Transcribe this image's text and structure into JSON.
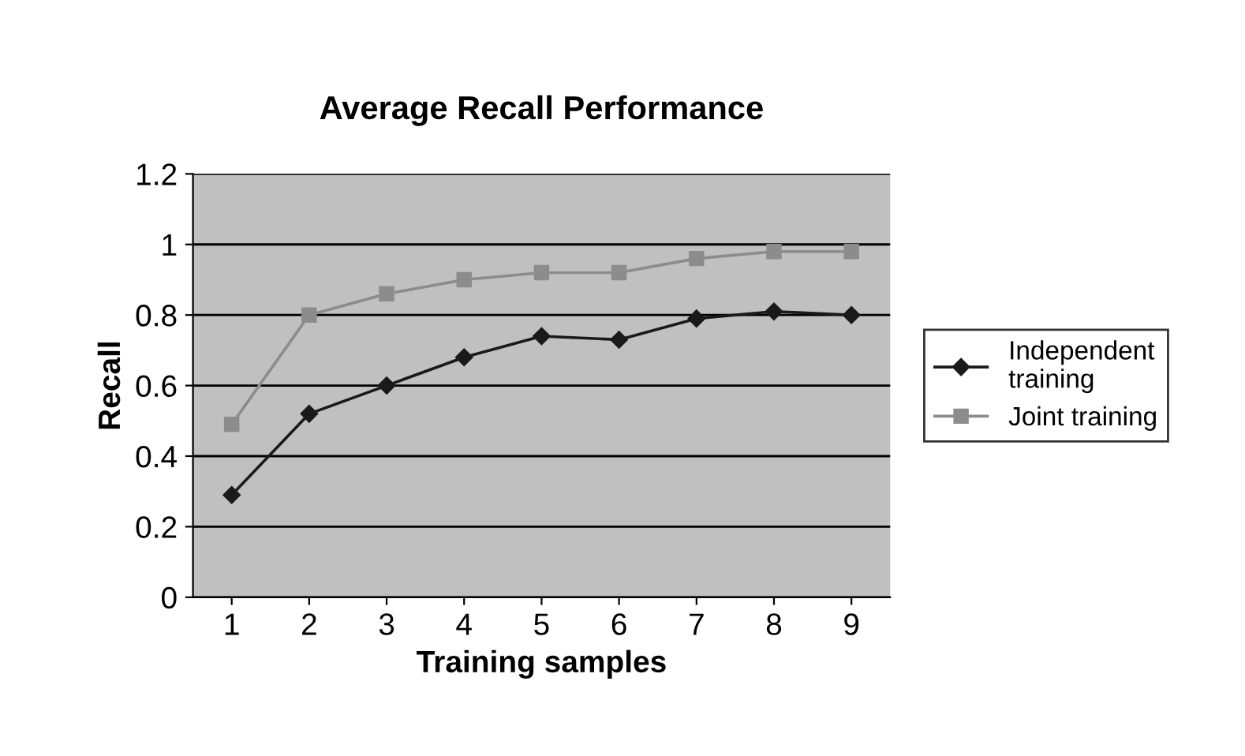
{
  "chart_data": {
    "type": "line",
    "title": "Average Recall Performance",
    "xlabel": "Training samples",
    "ylabel": "Recall",
    "categories": [
      "1",
      "2",
      "3",
      "4",
      "5",
      "6",
      "7",
      "8",
      "9"
    ],
    "series": [
      {
        "name": "Independent training",
        "color": "#1a1a1a",
        "marker": "diamond",
        "values": [
          0.29,
          0.52,
          0.6,
          0.68,
          0.74,
          0.73,
          0.79,
          0.81,
          0.8
        ]
      },
      {
        "name": "Joint training",
        "color": "#8c8c8c",
        "marker": "square",
        "values": [
          0.49,
          0.8,
          0.86,
          0.9,
          0.92,
          0.92,
          0.96,
          0.98,
          0.98
        ]
      }
    ],
    "ylim": [
      0,
      1.2
    ],
    "yticks": [
      0,
      0.2,
      0.4,
      0.6,
      0.8,
      1,
      1.2
    ],
    "grid": "y",
    "legend": "right",
    "line_style": "solid"
  }
}
